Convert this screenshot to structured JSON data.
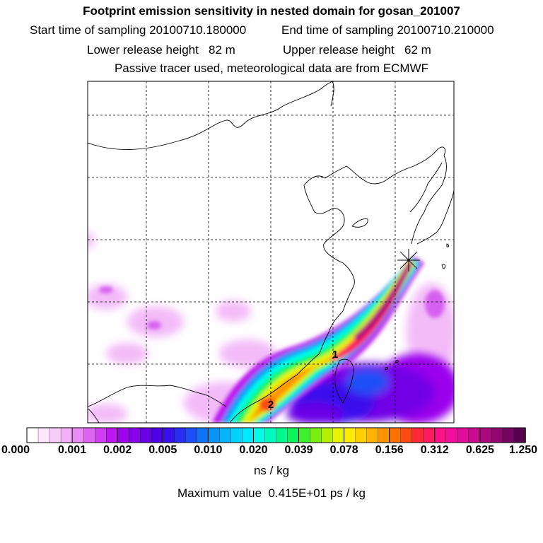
{
  "header": {
    "title": "Footprint emission sensitivity in nested domain for gosan_201007",
    "start_label": "Start time of sampling 20100710.180000",
    "end_label": "End time of sampling 20100710.210000",
    "lower_label": "Lower release height   82 m",
    "upper_label": "Upper release height   62 m",
    "info": "Passive tracer used, meteorological data are from ECMWF"
  },
  "map": {
    "markers": [
      "1",
      "2"
    ]
  },
  "colorbar": {
    "ticks": [
      "0.000",
      "0.001",
      "0.002",
      "0.005",
      "0.010",
      "0.020",
      "0.039",
      "0.078",
      "0.156",
      "0.312",
      "0.625",
      "1.250"
    ],
    "colors": [
      "#ffffff",
      "#fde7fd",
      "#f9cdf9",
      "#f3b2f7",
      "#e98df5",
      "#dd66f0",
      "#cf3ff0",
      "#bb17ef",
      "#a100ee",
      "#8600ea",
      "#6a00e6",
      "#4d00e3",
      "#3a10ec",
      "#2a2ef2",
      "#1c50f6",
      "#1173f8",
      "#0a95fa",
      "#06b5fb",
      "#03d3fc",
      "#00eafd",
      "#00fde9",
      "#00fbbd",
      "#00f88e",
      "#10f45b",
      "#3ff02c",
      "#79ee10",
      "#b4f003",
      "#e7f401",
      "#ffec00",
      "#ffd000",
      "#ffb200",
      "#ff9400",
      "#ff7200",
      "#ff4b14",
      "#ff2a36",
      "#ff1a5c",
      "#ff1285",
      "#f30ea0",
      "#e00d9b",
      "#c80b8e",
      "#ad097e",
      "#910870",
      "#740561",
      "#560251"
    ],
    "units": "ns / kg"
  },
  "max_value": "Maximum value  0.415E+01 ps / kg"
}
